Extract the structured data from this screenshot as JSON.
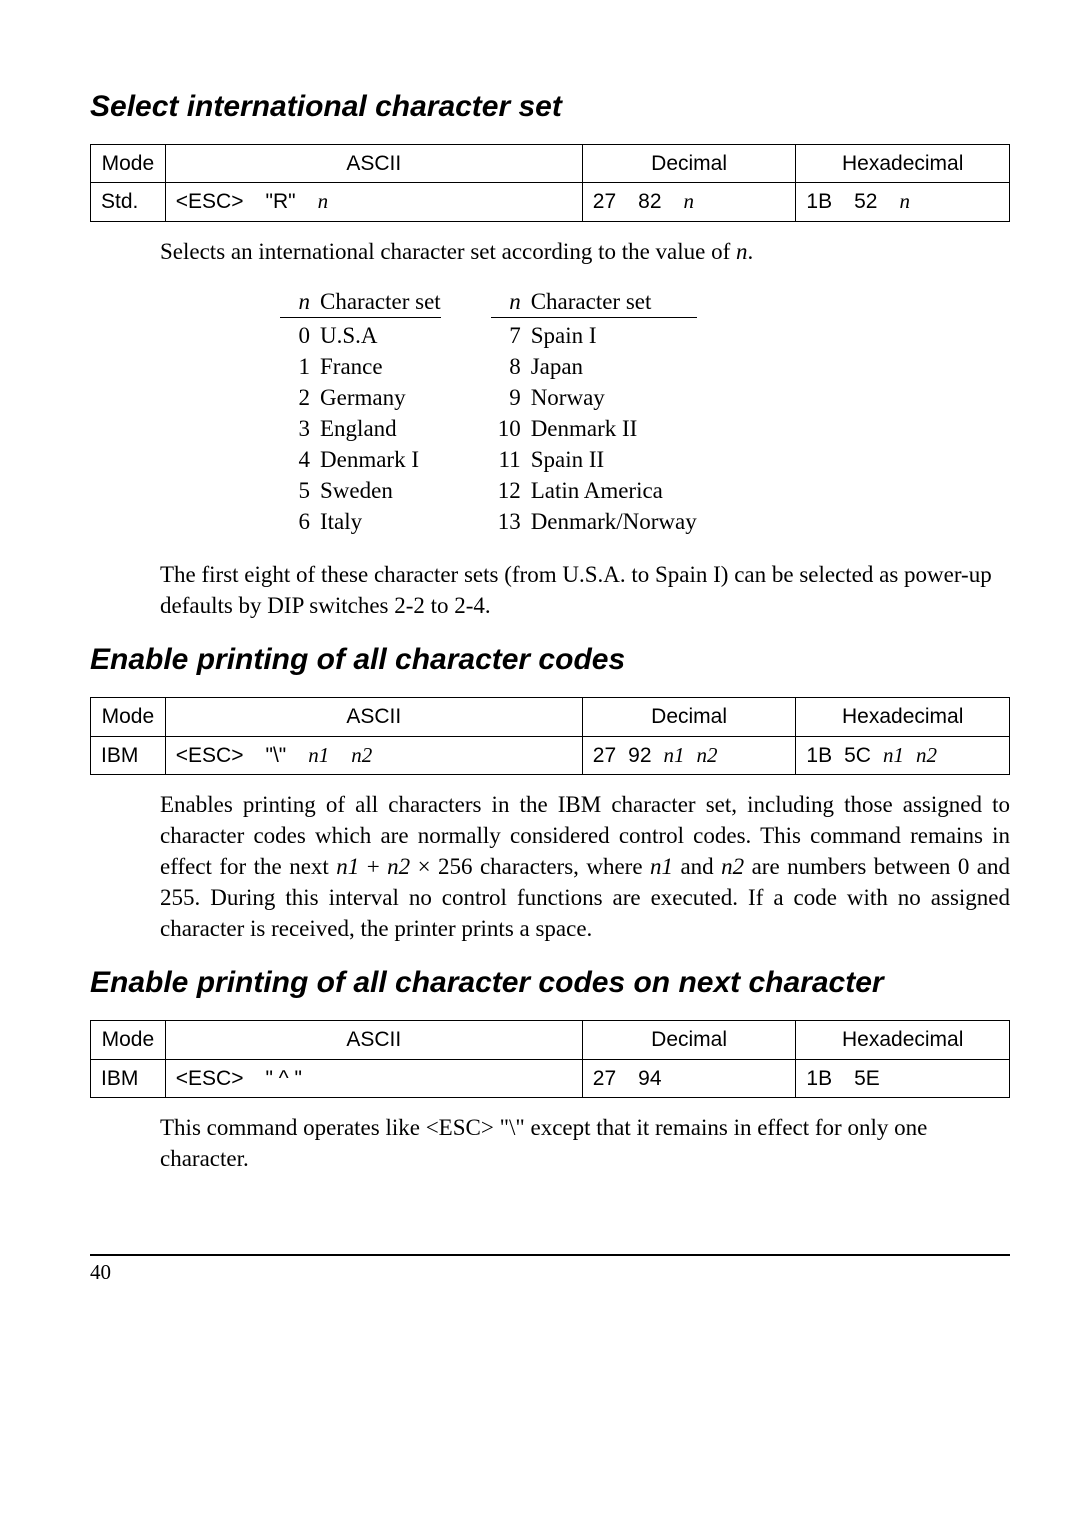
{
  "section1": {
    "title": "Select international character set",
    "table": {
      "headers": {
        "mode": "Mode",
        "ascii": "ASCII",
        "decimal": "Decimal",
        "hex": "Hexadecimal"
      },
      "row": {
        "mode": "Std.",
        "ascii_esc": "<ESC>",
        "ascii_char": "\"R\"",
        "ascii_var": "n",
        "dec_1": "27",
        "dec_2": "82",
        "dec_var": "n",
        "hex_1": "1B",
        "hex_2": "52",
        "hex_var": "n"
      }
    },
    "intro": "Selects an international character set according to the value of ",
    "intro_var": "n",
    "intro_end": ".",
    "charset_header_n": "n",
    "charset_header_label": "Character set",
    "charset_left": [
      {
        "n": "0",
        "name": "U.S.A"
      },
      {
        "n": "1",
        "name": "France"
      },
      {
        "n": "2",
        "name": "Germany"
      },
      {
        "n": "3",
        "name": "England"
      },
      {
        "n": "4",
        "name": "Denmark I"
      },
      {
        "n": "5",
        "name": "Sweden"
      },
      {
        "n": "6",
        "name": "Italy"
      }
    ],
    "charset_right": [
      {
        "n": "7",
        "name": "Spain I"
      },
      {
        "n": "8",
        "name": "Japan"
      },
      {
        "n": "9",
        "name": "Norway"
      },
      {
        "n": "10",
        "name": "Denmark II"
      },
      {
        "n": "11",
        "name": "Spain II"
      },
      {
        "n": "12",
        "name": "Latin America"
      },
      {
        "n": "13",
        "name": "Denmark/Norway"
      }
    ],
    "footnote": "The first eight of these character sets (from U.S.A. to Spain I) can be selected as power-up defaults by DIP switches 2-2 to 2-4."
  },
  "section2": {
    "title": "Enable printing of all character codes",
    "table": {
      "headers": {
        "mode": "Mode",
        "ascii": "ASCII",
        "decimal": "Decimal",
        "hex": "Hexadecimal"
      },
      "row": {
        "mode": "IBM",
        "ascii_esc": "<ESC>",
        "ascii_char": "\"\\\"",
        "ascii_var1": "n1",
        "ascii_var2": "n2",
        "dec_1": "27",
        "dec_2": "92",
        "dec_var1": "n1",
        "dec_var2": "n2",
        "hex_1": "1B",
        "hex_2": "5C",
        "hex_var1": "n1",
        "hex_var2": "n2"
      }
    },
    "body_1": "Enables printing of all characters in the IBM character set, including those assigned to character codes which are normally considered control codes. This command remains in effect for the next ",
    "body_var1": "n1",
    "body_plus": " + ",
    "body_var2": "n2",
    "body_2": " × 256 characters, where ",
    "body_var1b": "n1",
    "body_and": " and ",
    "body_var2b": "n2",
    "body_3": " are numbers between 0 and 255. During this interval no control functions are executed. If a code with no assigned character is received, the printer prints a space."
  },
  "section3": {
    "title": "Enable printing of all character codes on next character",
    "table": {
      "headers": {
        "mode": "Mode",
        "ascii": "ASCII",
        "decimal": "Decimal",
        "hex": "Hexadecimal"
      },
      "row": {
        "mode": "IBM",
        "ascii_esc": "<ESC>",
        "ascii_char": "\" ^ \"",
        "dec_1": "27",
        "dec_2": "94",
        "hex_1": "1B",
        "hex_2": "5E"
      }
    },
    "body_1": "This command operates like <ESC> \"\\\" except that it remains in effect for only one character."
  },
  "page_number": "40"
}
